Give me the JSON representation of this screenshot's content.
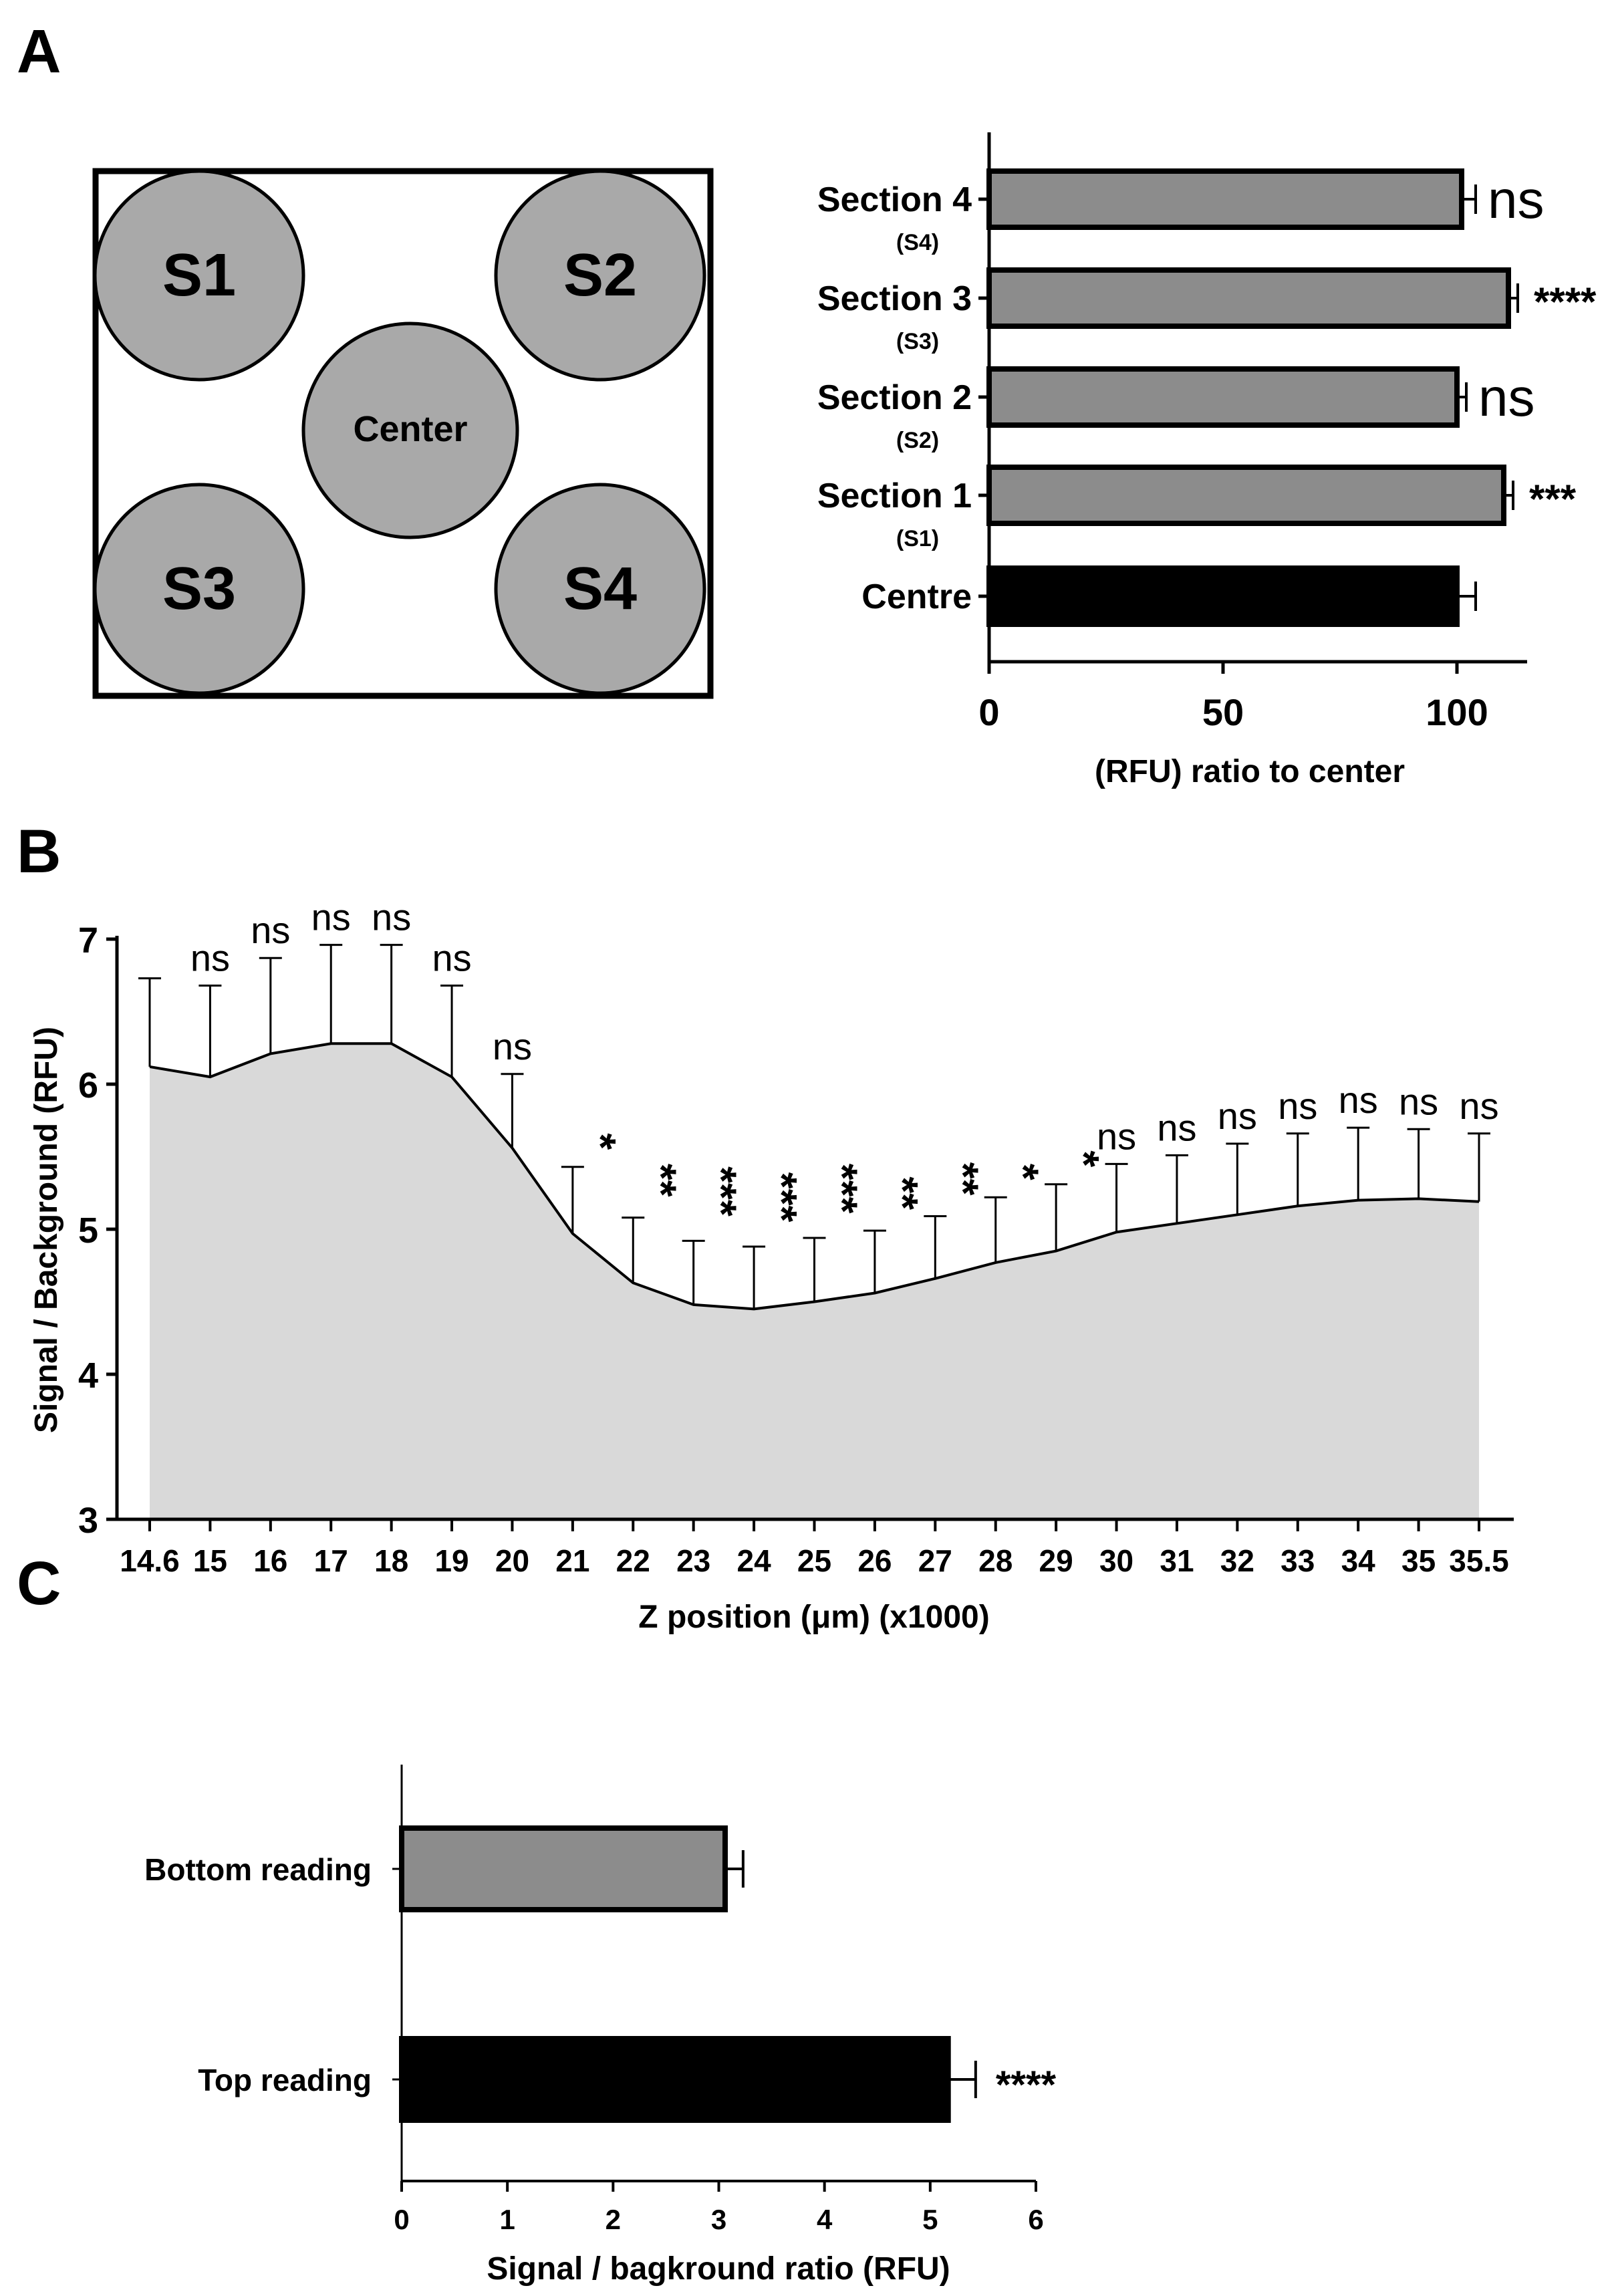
{
  "panels": {
    "a": {
      "label": "A"
    },
    "b": {
      "label": "B"
    },
    "c": {
      "label": "C"
    }
  },
  "plate": {
    "wells": [
      {
        "name": "S1",
        "label": "S1"
      },
      {
        "name": "S2",
        "label": "S2"
      },
      {
        "name": "center",
        "label": "Center"
      },
      {
        "name": "S3",
        "label": "S3"
      },
      {
        "name": "S4",
        "label": "S4"
      }
    ],
    "fill": "#a9a9a9"
  },
  "chart_data": [
    {
      "id": "A",
      "type": "bar",
      "orientation": "horizontal",
      "xlabel": "(RFU) ratio to center",
      "xlim": [
        0,
        115
      ],
      "xticks": [
        "0",
        "50",
        "100"
      ],
      "xtick_values": [
        0,
        50,
        100
      ],
      "categories": [
        {
          "label": "Section 4",
          "sublabel": "(S4)",
          "value": 101,
          "error": 3,
          "sig": "ns",
          "color": "#8c8c8c"
        },
        {
          "label": "Section 3",
          "sublabel": "(S3)",
          "value": 111,
          "error": 2,
          "sig": "****",
          "color": "#8c8c8c"
        },
        {
          "label": "Section 2",
          "sublabel": "(S2)",
          "value": 100,
          "error": 2,
          "sig": "ns",
          "color": "#8c8c8c"
        },
        {
          "label": "Section 1",
          "sublabel": "(S1)",
          "value": 110,
          "error": 2,
          "sig": "***",
          "color": "#8c8c8c"
        },
        {
          "label": "Centre",
          "sublabel": "",
          "value": 100,
          "error": 4,
          "sig": "",
          "color": "#000000"
        }
      ]
    },
    {
      "id": "B",
      "type": "area",
      "xlabel": "Z position (μm) (x1000)",
      "ylabel": "Signal / Background (RFU)",
      "ylim": [
        3,
        7
      ],
      "yticks": [
        "3",
        "4",
        "5",
        "6",
        "7"
      ],
      "fill": "#d9d9d9",
      "x": [
        "14.6",
        "15",
        "16",
        "17",
        "18",
        "19",
        "20",
        "21",
        "22",
        "23",
        "24",
        "25",
        "26",
        "27",
        "28",
        "29",
        "30",
        "31",
        "32",
        "33",
        "34",
        "35",
        "35.5"
      ],
      "values": [
        6.12,
        6.05,
        6.21,
        6.28,
        6.28,
        6.05,
        5.56,
        4.97,
        4.63,
        4.48,
        4.45,
        4.5,
        4.56,
        4.66,
        4.77,
        4.85,
        4.98,
        5.04,
        5.1,
        5.16,
        5.2,
        5.21,
        5.19
      ],
      "upper": [
        6.73,
        6.68,
        6.87,
        6.96,
        6.96,
        6.68,
        6.07,
        5.43,
        5.08,
        4.92,
        4.88,
        4.94,
        4.99,
        5.09,
        5.22,
        5.31,
        5.45,
        5.51,
        5.59,
        5.66,
        5.7,
        5.69,
        5.66
      ],
      "sig": [
        "",
        "ns",
        "ns",
        "ns",
        "ns",
        "ns",
        "ns",
        "*",
        "**",
        "***",
        "***",
        "***",
        "**",
        "**",
        "*",
        "*",
        "ns",
        "ns",
        "ns",
        "ns",
        "ns",
        "ns",
        "ns"
      ]
    },
    {
      "id": "C",
      "type": "bar",
      "orientation": "horizontal",
      "xlabel": "Signal / bagkround ratio (RFU)",
      "xlim": [
        0,
        6
      ],
      "xticks": [
        "0",
        "1",
        "2",
        "3",
        "4",
        "5",
        "6"
      ],
      "categories": [
        {
          "label": "Bottom reading",
          "value": 3.06,
          "error": 0.17,
          "sig": "",
          "color": "#8c8c8c"
        },
        {
          "label": "Top reading",
          "value": 5.17,
          "error": 0.26,
          "sig": "****",
          "color": "#000000"
        }
      ]
    }
  ]
}
